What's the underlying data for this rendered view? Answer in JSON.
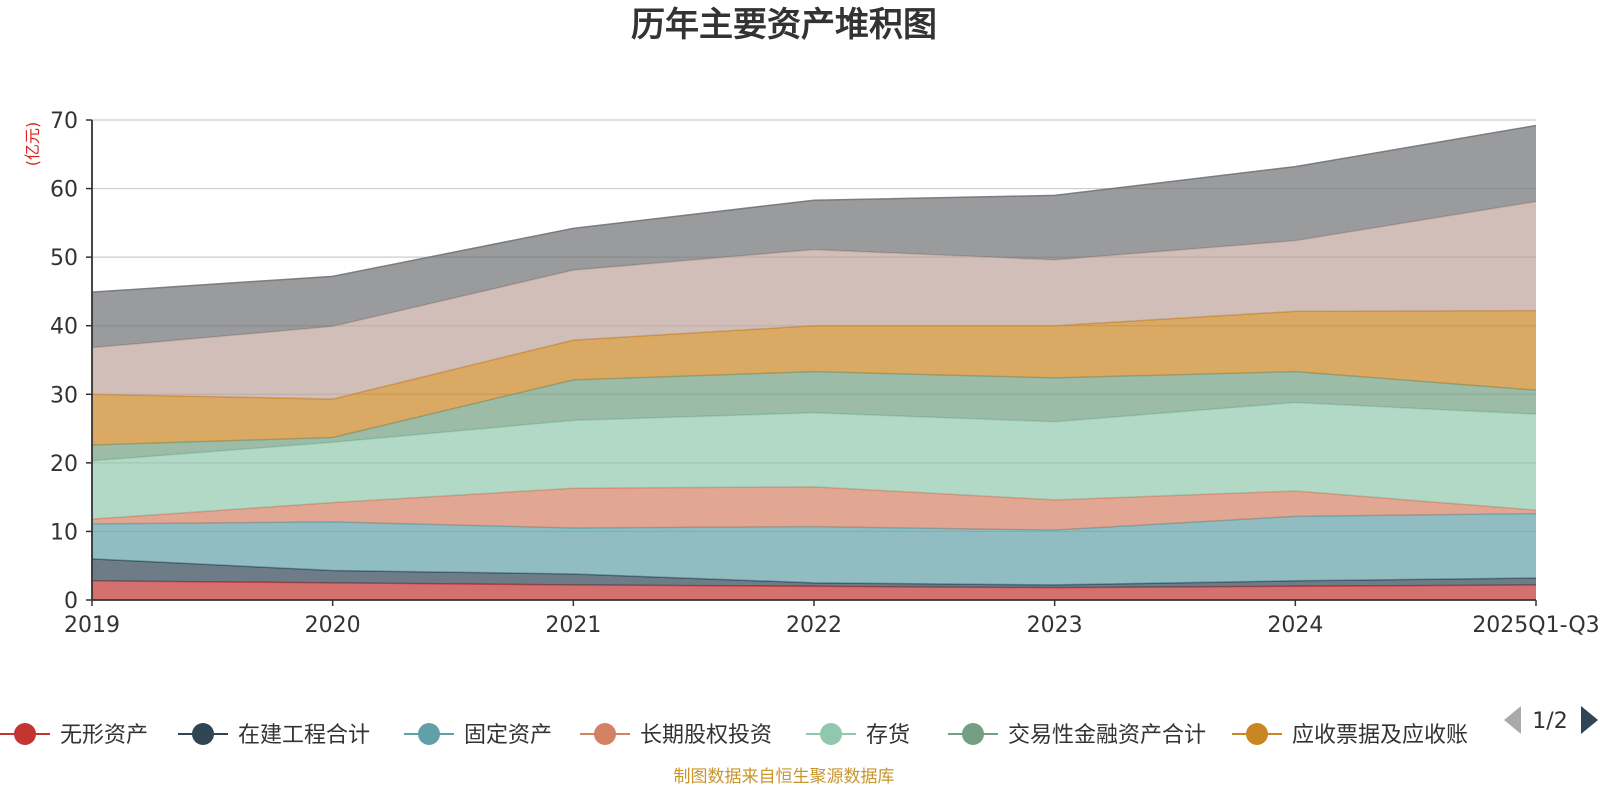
{
  "chart_data": {
    "type": "area",
    "stacked": true,
    "title": "历年主要资产堆积图",
    "ylabel": "(亿元)",
    "ylim": [
      0,
      70
    ],
    "yticks": [
      0,
      10,
      20,
      30,
      40,
      50,
      60,
      70
    ],
    "grid": true,
    "legend_position": "bottom",
    "categories": [
      "2019",
      "2020",
      "2021",
      "2022",
      "2023",
      "2024",
      "2025Q1-Q3"
    ],
    "series": [
      {
        "name": "无形资产",
        "color": "#c23531",
        "values": [
          2.8,
          2.5,
          2.2,
          2.0,
          1.8,
          2.0,
          2.2
        ]
      },
      {
        "name": "在建工程合计",
        "color": "#2f4554",
        "values": [
          3.2,
          1.8,
          1.6,
          0.5,
          0.4,
          0.8,
          1.0
        ]
      },
      {
        "name": "固定资产",
        "color": "#61a0a8",
        "values": [
          5.1,
          7.1,
          6.7,
          8.2,
          8.0,
          9.4,
          9.4
        ]
      },
      {
        "name": "长期股权投资",
        "color": "#d48265",
        "values": [
          0.7,
          2.8,
          5.8,
          5.8,
          4.4,
          3.7,
          0.5
        ]
      },
      {
        "name": "存货",
        "color": "#91c7ae",
        "values": [
          8.5,
          8.8,
          9.9,
          10.8,
          11.4,
          12.9,
          14.0
        ]
      },
      {
        "name": "交易性金融资产合计",
        "color": "#749f83",
        "values": [
          2.3,
          0.7,
          5.9,
          6.0,
          6.4,
          4.5,
          3.5
        ]
      },
      {
        "name": "应收票据及应收账",
        "color": "#ca8622",
        "values": [
          7.4,
          5.6,
          5.8,
          6.7,
          7.6,
          8.8,
          11.6
        ]
      },
      {
        "name": "",
        "color": "#bda29a",
        "values": [
          6.8,
          10.6,
          10.2,
          11.1,
          9.6,
          10.3,
          15.9
        ]
      },
      {
        "name": "",
        "color": "#6e7074",
        "values": [
          8.1,
          7.3,
          6.1,
          7.2,
          9.4,
          10.8,
          11.1
        ]
      }
    ]
  },
  "legend": {
    "items": [
      "无形资产",
      "在建工程合计",
      "固定资产",
      "长期股权投资",
      "存货",
      "交易性金融资产合计",
      "应收票据及应收账"
    ],
    "page_indicator": "1/2",
    "prev_color": "#aaaaaa",
    "next_color": "#2f4554"
  },
  "source_note": "制图数据来自恒生聚源数据库"
}
